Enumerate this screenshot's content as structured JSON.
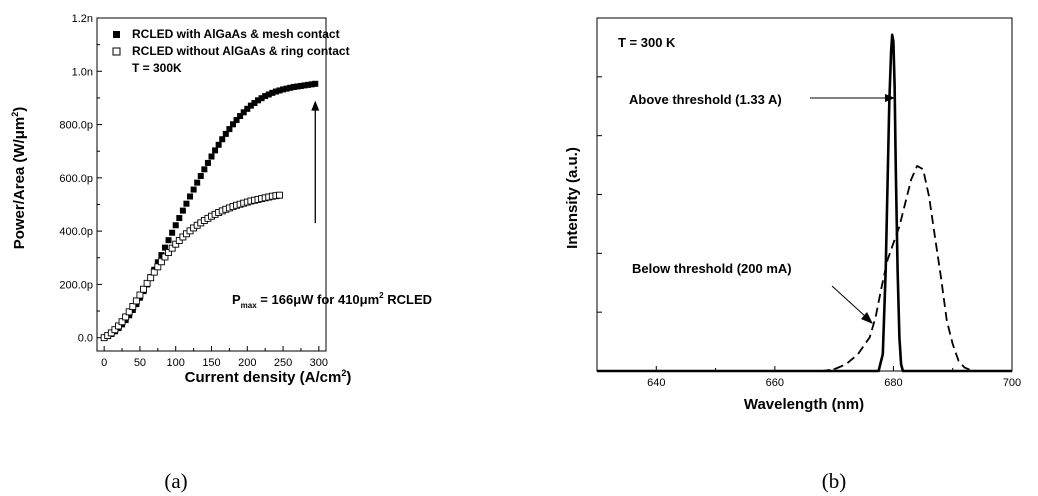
{
  "chart_data": [
    {
      "type": "scatter",
      "panel_label": "(a)",
      "xlabel": "Current density (A/cm",
      "xlabel_sup": "2",
      "xlabel_end": ")",
      "ylabel": "Power/Area (W/μm",
      "ylabel_sup": "2",
      "ylabel_end": ")",
      "xlim": [
        -10,
        310
      ],
      "ylim": [
        -0.05,
        1.2
      ],
      "x_ticks": [
        "0",
        "50",
        "100",
        "150",
        "200",
        "250",
        "300"
      ],
      "y_ticks": [
        "0.0",
        "200.0p",
        "400.0p",
        "600.0p",
        "800.0p",
        "1.0n",
        "1.2n"
      ],
      "legend_title": "T = 300K",
      "annotation": {
        "p": "P",
        "sub": "max",
        "mid": " = 166μW for 410μm",
        "sup": "2",
        "end": " RCLED"
      },
      "arrow": {
        "x": 295,
        "from_y": 0.43,
        "to_y": 0.89
      },
      "series": [
        {
          "name": "RCLED with AlGaAs & mesh contact",
          "marker": "filled-square",
          "x": [
            0,
            5,
            10,
            15,
            20,
            25,
            30,
            35,
            40,
            45,
            50,
            55,
            60,
            65,
            70,
            75,
            80,
            85,
            90,
            95,
            100,
            105,
            110,
            115,
            120,
            125,
            130,
            135,
            140,
            145,
            150,
            155,
            160,
            165,
            170,
            175,
            180,
            185,
            190,
            195,
            200,
            205,
            210,
            215,
            220,
            225,
            230,
            235,
            240,
            245,
            250,
            255,
            260,
            265,
            270,
            275,
            280,
            285,
            290,
            295
          ],
          "y": [
            0.0,
            0.006,
            0.014,
            0.024,
            0.036,
            0.05,
            0.066,
            0.084,
            0.104,
            0.126,
            0.15,
            0.175,
            0.2,
            0.227,
            0.255,
            0.283,
            0.31,
            0.338,
            0.366,
            0.394,
            0.422,
            0.449,
            0.477,
            0.503,
            0.53,
            0.556,
            0.582,
            0.607,
            0.632,
            0.656,
            0.68,
            0.703,
            0.724,
            0.745,
            0.765,
            0.783,
            0.801,
            0.817,
            0.832,
            0.846,
            0.859,
            0.871,
            0.881,
            0.891,
            0.899,
            0.907,
            0.913,
            0.919,
            0.924,
            0.928,
            0.932,
            0.935,
            0.938,
            0.941,
            0.943,
            0.945,
            0.947,
            0.949,
            0.951,
            0.953
          ]
        },
        {
          "name": "RCLED without AlGaAs & ring contact",
          "marker": "open-square",
          "x": [
            0,
            5,
            10,
            15,
            20,
            25,
            30,
            35,
            40,
            45,
            50,
            55,
            60,
            65,
            70,
            75,
            80,
            85,
            90,
            95,
            100,
            105,
            110,
            115,
            120,
            125,
            130,
            135,
            140,
            145,
            150,
            155,
            160,
            165,
            170,
            175,
            180,
            185,
            190,
            195,
            200,
            205,
            210,
            215,
            220,
            225,
            230,
            235,
            240,
            245
          ],
          "y": [
            0.0,
            0.008,
            0.018,
            0.03,
            0.044,
            0.06,
            0.078,
            0.097,
            0.117,
            0.138,
            0.16,
            0.182,
            0.204,
            0.225,
            0.246,
            0.266,
            0.285,
            0.303,
            0.32,
            0.336,
            0.351,
            0.365,
            0.378,
            0.39,
            0.401,
            0.412,
            0.422,
            0.431,
            0.44,
            0.448,
            0.456,
            0.463,
            0.47,
            0.476,
            0.482,
            0.487,
            0.492,
            0.497,
            0.501,
            0.505,
            0.509,
            0.513,
            0.516,
            0.519,
            0.522,
            0.525,
            0.528,
            0.531,
            0.533,
            0.535
          ]
        }
      ]
    },
    {
      "type": "line",
      "panel_label": "(b)",
      "xlabel": "Wavelength (nm)",
      "ylabel": "Intensity (a.u.)",
      "xlim": [
        630,
        700
      ],
      "ylim": [
        0,
        1.05
      ],
      "x_ticks": [
        "640",
        "660",
        "680",
        "700"
      ],
      "x_tick_values": [
        640,
        660,
        680,
        700
      ],
      "title_text": "T = 300 K",
      "label_above": "Above threshold (1.33 A)",
      "label_below": "Below threshold (200 mA)",
      "series": [
        {
          "name": "Above threshold (1.33 A)",
          "style": "solid",
          "x": [
            630,
            677.5,
            678.2,
            678.7,
            679.0,
            679.3,
            679.6,
            679.8,
            680.0,
            680.2,
            680.4,
            680.7,
            681.0,
            681.3,
            681.6,
            700
          ],
          "y": [
            0,
            0,
            0.05,
            0.3,
            0.55,
            0.8,
            0.95,
            1.0,
            0.98,
            0.85,
            0.6,
            0.3,
            0.1,
            0.02,
            0,
            0
          ]
        },
        {
          "name": "Below threshold (200 mA)",
          "style": "dashed",
          "x": [
            630,
            668,
            670,
            672,
            674,
            676,
            677,
            678,
            679,
            680,
            681,
            682,
            683,
            684,
            685,
            686,
            687,
            688,
            689,
            690,
            691,
            692,
            693,
            694,
            700
          ],
          "y": [
            0,
            0,
            0.005,
            0.02,
            0.05,
            0.1,
            0.16,
            0.25,
            0.33,
            0.38,
            0.43,
            0.5,
            0.57,
            0.61,
            0.6,
            0.52,
            0.4,
            0.28,
            0.15,
            0.08,
            0.03,
            0.01,
            0.003,
            0,
            0
          ]
        }
      ]
    }
  ]
}
